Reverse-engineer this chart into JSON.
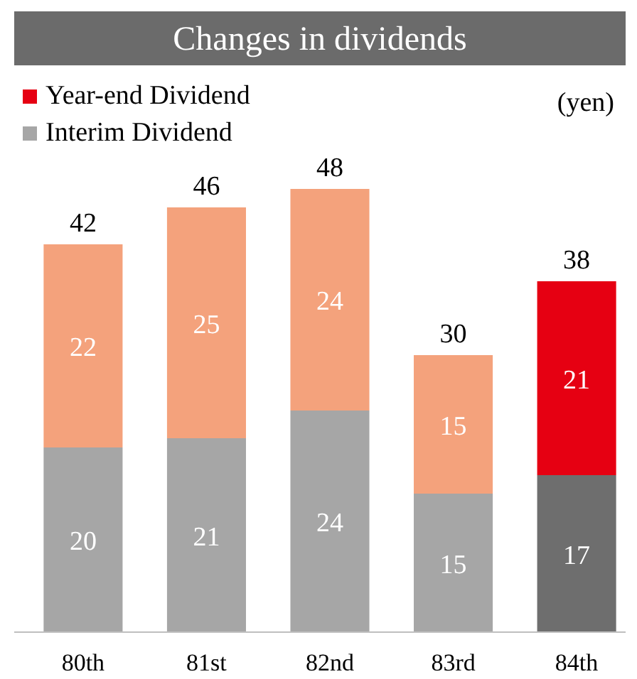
{
  "chart_data": {
    "type": "bar",
    "title": "Changes in dividends",
    "categories": [
      "80th",
      "81st",
      "82nd",
      "83rd",
      "84th"
    ],
    "stacked": true,
    "data_labels": true,
    "legend": "top left",
    "annotations": [
      "(yen)"
    ],
    "series": [
      {
        "name": "Interim Dividend",
        "color": "#a6a6a6",
        "colors": [
          "#a6a6a6",
          "#a6a6a6",
          "#a6a6a6",
          "#a6a6a6",
          "#6e6e6e"
        ],
        "values": [
          20,
          21,
          24,
          15,
          17
        ]
      },
      {
        "name": "Year-end Dividend",
        "color": "#e60012",
        "colors": [
          "#f4a27c",
          "#f4a27c",
          "#f4a27c",
          "#f4a27c",
          "#e60012"
        ],
        "values": [
          22,
          25,
          24,
          15,
          21
        ]
      }
    ],
    "totals": [
      "42",
      "46",
      "48",
      "30",
      "38"
    ]
  }
}
